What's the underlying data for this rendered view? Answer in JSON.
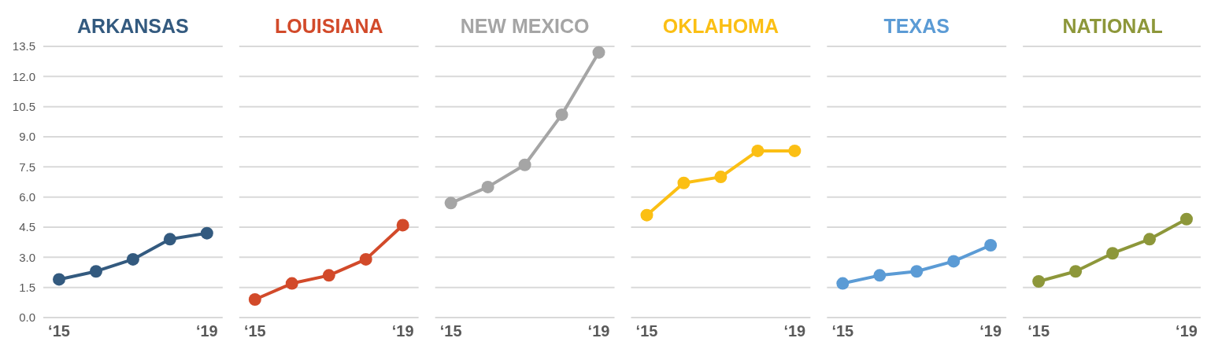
{
  "chart_data": [
    {
      "type": "line",
      "title": "ARKANSAS",
      "categories": [
        "‘15",
        null,
        null,
        null,
        "‘19"
      ],
      "series": [
        {
          "color": "#335a7f",
          "values": [
            1.9,
            2.3,
            2.9,
            3.9,
            4.2
          ]
        }
      ],
      "ylim": [
        0,
        13.5
      ],
      "yticks": [
        {
          "value": 0,
          "label": "0.0"
        },
        1.5,
        {
          "value": 3,
          "label": "3.0"
        },
        4.5,
        {
          "value": 6,
          "label": "6.0"
        },
        7.5,
        {
          "value": 9,
          "label": "9.0"
        },
        10.5,
        {
          "value": 12,
          "label": "12.0"
        },
        13.5
      ],
      "grid": "y",
      "marker": "circle"
    },
    {
      "type": "line",
      "title": "LOUISIANA",
      "categories": [
        "‘15",
        null,
        null,
        null,
        "‘19"
      ],
      "series": [
        {
          "color": "#d24a2a",
          "values": [
            0.9,
            1.7,
            2.1,
            2.9,
            4.6
          ]
        }
      ],
      "ylim": [
        0,
        13.5
      ],
      "yticks": [
        {
          "value": 0,
          "label": null
        },
        {
          "value": 1.5,
          "label": null
        },
        {
          "value": 3,
          "label": null
        },
        {
          "value": 4.5,
          "label": null
        },
        {
          "value": 6,
          "label": null
        },
        {
          "value": 7.5,
          "label": null
        },
        {
          "value": 9,
          "label": null
        },
        {
          "value": 10.5,
          "label": null
        },
        {
          "value": 12,
          "label": null
        },
        {
          "value": 13.5,
          "label": null
        }
      ],
      "grid": "y",
      "marker": "circle",
      "tick_labels": "x"
    },
    {
      "type": "line",
      "title": "NEW MEXICO",
      "categories": [
        "‘15",
        null,
        null,
        null,
        "‘19"
      ],
      "series": [
        {
          "color": "#a5a5a5",
          "values": [
            5.7,
            6.5,
            7.6,
            10.1,
            13.2
          ]
        }
      ],
      "ylim": [
        0,
        13.5
      ],
      "yticks": [
        {
          "value": 0,
          "label": null
        },
        {
          "value": 1.5,
          "label": null
        },
        {
          "value": 3,
          "label": null
        },
        {
          "value": 4.5,
          "label": null
        },
        {
          "value": 6,
          "label": null
        },
        {
          "value": 7.5,
          "label": null
        },
        {
          "value": 9,
          "label": null
        },
        {
          "value": 10.5,
          "label": null
        },
        {
          "value": 12,
          "label": null
        },
        {
          "value": 13.5,
          "label": null
        }
      ],
      "grid": "y",
      "marker": "circle",
      "tick_labels": "x"
    },
    {
      "type": "line",
      "title": "OKLAHOMA",
      "categories": [
        "‘15",
        null,
        null,
        null,
        "‘19"
      ],
      "series": [
        {
          "color": "#fbbf14",
          "values": [
            5.1,
            6.7,
            7.0,
            8.3,
            8.3
          ]
        }
      ],
      "ylim": [
        0,
        13.5
      ],
      "yticks": [
        {
          "value": 0,
          "label": null
        },
        {
          "value": 1.5,
          "label": null
        },
        {
          "value": 3,
          "label": null
        },
        {
          "value": 4.5,
          "label": null
        },
        {
          "value": 6,
          "label": null
        },
        {
          "value": 7.5,
          "label": null
        },
        {
          "value": 9,
          "label": null
        },
        {
          "value": 10.5,
          "label": null
        },
        {
          "value": 12,
          "label": null
        },
        {
          "value": 13.5,
          "label": null
        }
      ],
      "grid": "y",
      "marker": "circle",
      "tick_labels": "x"
    },
    {
      "type": "line",
      "title": "TEXAS",
      "categories": [
        "‘15",
        null,
        null,
        null,
        "‘19"
      ],
      "series": [
        {
          "color": "#5b9bd5",
          "values": [
            1.7,
            2.1,
            2.3,
            2.8,
            3.6
          ]
        }
      ],
      "ylim": [
        0,
        13.5
      ],
      "yticks": [
        {
          "value": 0,
          "label": null
        },
        {
          "value": 1.5,
          "label": null
        },
        {
          "value": 3,
          "label": null
        },
        {
          "value": 4.5,
          "label": null
        },
        {
          "value": 6,
          "label": null
        },
        {
          "value": 7.5,
          "label": null
        },
        {
          "value": 9,
          "label": null
        },
        {
          "value": 10.5,
          "label": null
        },
        {
          "value": 12,
          "label": null
        },
        {
          "value": 13.5,
          "label": null
        }
      ],
      "grid": "y",
      "marker": "circle",
      "tick_labels": "x"
    },
    {
      "type": "line",
      "title": "NATIONAL",
      "categories": [
        "‘15",
        null,
        null,
        null,
        "‘19"
      ],
      "series": [
        {
          "color": "#8d973a",
          "values": [
            1.8,
            2.3,
            3.2,
            3.9,
            4.9
          ]
        }
      ],
      "ylim": [
        0,
        13.5
      ],
      "yticks": [
        {
          "value": 0,
          "label": null
        },
        {
          "value": 1.5,
          "label": null
        },
        {
          "value": 3,
          "label": null
        },
        {
          "value": 4.5,
          "label": null
        },
        {
          "value": 6,
          "label": null
        },
        {
          "value": 7.5,
          "label": null
        },
        {
          "value": 9,
          "label": null
        },
        {
          "value": 10.5,
          "label": null
        },
        {
          "value": 12,
          "label": null
        },
        {
          "value": 13.5,
          "label": null
        }
      ],
      "grid": "y",
      "marker": "circle",
      "tick_labels": "x"
    }
  ]
}
